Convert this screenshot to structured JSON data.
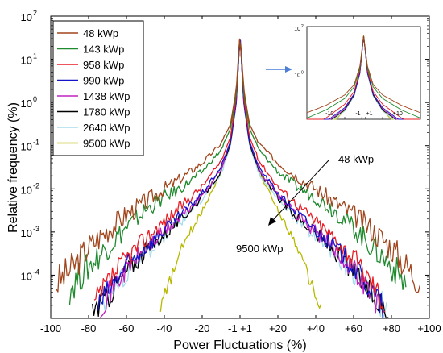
{
  "chart_data": {
    "type": "line",
    "xlabel": "Power Fluctuations (%)",
    "ylabel": "Relative frequency (%)",
    "xlim": [
      -100,
      100
    ],
    "ylim_log10": [
      -5,
      2
    ],
    "y_scale": "log",
    "x_tick_labels": [
      "-100",
      "-80",
      "-60",
      "-40",
      "-20",
      "-1 +1",
      "+20",
      "+40",
      "+60",
      "+80",
      "+100"
    ],
    "y_tick_exponents": [
      "2",
      "1",
      "0",
      "-1",
      "-2",
      "-3",
      "-4"
    ],
    "legend_position": "top-left",
    "series": [
      {
        "name": "48 kWp",
        "color": "#a0451c",
        "lo": -97,
        "hi": 95,
        "pts": [
          [
            0,
            1.6
          ],
          [
            2,
            0.3
          ],
          [
            5,
            -0.5
          ],
          [
            10,
            -0.95
          ],
          [
            20,
            -1.4
          ],
          [
            30,
            -1.72
          ],
          [
            40,
            -2.0
          ],
          [
            50,
            -2.3
          ],
          [
            60,
            -2.6
          ],
          [
            70,
            -2.95
          ],
          [
            80,
            -3.35
          ],
          [
            90,
            -3.9
          ],
          [
            95,
            -4.1
          ]
        ]
      },
      {
        "name": "143 kWp",
        "color": "#1f8a2e",
        "lo": -90,
        "hi": 88,
        "pts": [
          [
            0,
            1.6
          ],
          [
            2,
            0.2
          ],
          [
            5,
            -0.6
          ],
          [
            10,
            -1.1
          ],
          [
            20,
            -1.6
          ],
          [
            30,
            -1.95
          ],
          [
            40,
            -2.2
          ],
          [
            50,
            -2.5
          ],
          [
            60,
            -2.9
          ],
          [
            70,
            -3.35
          ],
          [
            80,
            -3.8
          ],
          [
            88,
            -4.2
          ]
        ]
      },
      {
        "name": "958 kWp",
        "color": "#e81c24",
        "lo": -77,
        "hi": 77,
        "pts": [
          [
            0,
            1.6
          ],
          [
            2,
            0.1
          ],
          [
            5,
            -0.8
          ],
          [
            10,
            -1.35
          ],
          [
            20,
            -1.95
          ],
          [
            30,
            -2.35
          ],
          [
            40,
            -2.75
          ],
          [
            50,
            -3.15
          ],
          [
            60,
            -3.6
          ],
          [
            70,
            -4.2
          ],
          [
            77,
            -4.7
          ]
        ]
      },
      {
        "name": "990 kWp",
        "color": "#1414c8",
        "lo": -75,
        "hi": 76,
        "pts": [
          [
            0,
            1.6
          ],
          [
            2,
            0.0
          ],
          [
            5,
            -0.9
          ],
          [
            10,
            -1.5
          ],
          [
            20,
            -2.1
          ],
          [
            30,
            -2.55
          ],
          [
            40,
            -2.95
          ],
          [
            50,
            -3.35
          ],
          [
            60,
            -3.8
          ],
          [
            70,
            -4.4
          ],
          [
            76,
            -4.8
          ]
        ]
      },
      {
        "name": "1438 kWp",
        "color": "#c020c0",
        "lo": -74,
        "hi": 75,
        "pts": [
          [
            0,
            1.6
          ],
          [
            2,
            0.0
          ],
          [
            5,
            -0.9
          ],
          [
            10,
            -1.55
          ],
          [
            20,
            -2.15
          ],
          [
            30,
            -2.6
          ],
          [
            40,
            -3.0
          ],
          [
            50,
            -3.4
          ],
          [
            60,
            -3.85
          ],
          [
            70,
            -4.45
          ],
          [
            75,
            -4.8
          ]
        ]
      },
      {
        "name": "1780 kWp",
        "color": "#000000",
        "lo": -78,
        "hi": 79,
        "pts": [
          [
            0,
            1.6
          ],
          [
            2,
            0.0
          ],
          [
            5,
            -0.95
          ],
          [
            10,
            -1.6
          ],
          [
            20,
            -2.2
          ],
          [
            30,
            -2.65
          ],
          [
            40,
            -3.05
          ],
          [
            50,
            -3.45
          ],
          [
            60,
            -3.9
          ],
          [
            70,
            -4.5
          ],
          [
            79,
            -4.85
          ]
        ]
      },
      {
        "name": "2640 kWp",
        "color": "#a8dcec",
        "lo": -73,
        "hi": 78,
        "pts": [
          [
            0,
            1.6
          ],
          [
            2,
            -0.05
          ],
          [
            5,
            -1.0
          ],
          [
            10,
            -1.65
          ],
          [
            20,
            -2.25
          ],
          [
            30,
            -2.7
          ],
          [
            40,
            -3.1
          ],
          [
            50,
            -3.5
          ],
          [
            60,
            -3.95
          ],
          [
            70,
            -4.5
          ],
          [
            78,
            -4.8
          ]
        ]
      },
      {
        "name": "9500 kWp",
        "color": "#b8b800",
        "lo": -42,
        "hi": 43,
        "pts": [
          [
            0,
            1.65
          ],
          [
            1,
            0.9
          ],
          [
            2,
            0.2
          ],
          [
            5,
            -0.9
          ],
          [
            10,
            -1.6
          ],
          [
            15,
            -2.05
          ],
          [
            20,
            -2.5
          ],
          [
            25,
            -2.9
          ],
          [
            30,
            -3.3
          ],
          [
            35,
            -3.9
          ],
          [
            40,
            -4.5
          ],
          [
            43,
            -4.8
          ]
        ]
      }
    ],
    "annotations": [
      {
        "text": "48 kWp",
        "x": 48,
        "y_log10": -1.9
      },
      {
        "text": "9500 kWp",
        "x": 10,
        "y_log10": -3.4
      }
    ],
    "inset": {
      "x_tick_labels": [
        "-10",
        "-1",
        "+1",
        "+10"
      ],
      "y_tick_exponents": [
        "2",
        "0"
      ]
    }
  }
}
